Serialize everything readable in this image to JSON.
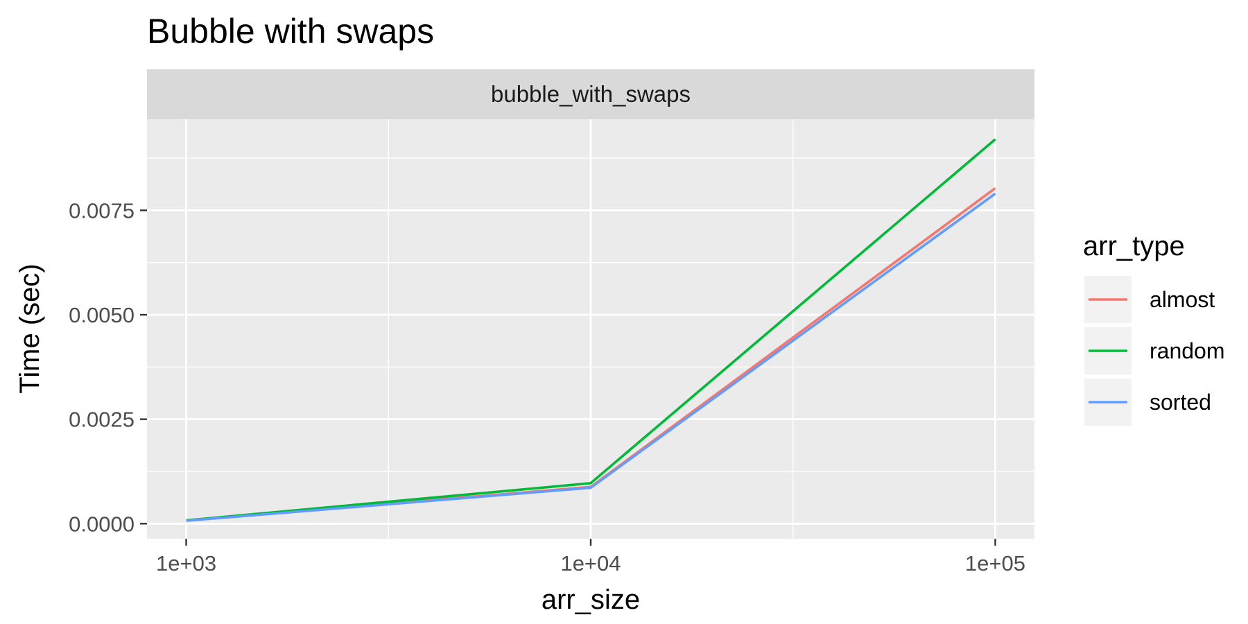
{
  "chart_data": {
    "type": "line",
    "title": "Bubble with swaps",
    "facet_label": "bubble_with_swaps",
    "xlabel": "arr_size",
    "ylabel": "Time (sec)",
    "x_scale": "log10",
    "x": [
      1000,
      10000,
      100000
    ],
    "x_ticks": [
      1000,
      10000,
      100000
    ],
    "x_tick_labels": [
      "1e+03",
      "1e+04",
      "1e+05"
    ],
    "xlim": [
      800,
      125000
    ],
    "y_ticks": [
      0,
      0.0025,
      0.005,
      0.0075
    ],
    "y_tick_labels": [
      "0.0000",
      "0.0025",
      "0.0050",
      "0.0075"
    ],
    "ylim": [
      -0.00036,
      0.00968
    ],
    "grid": true,
    "legend_title": "arr_type",
    "legend_position": "right",
    "series": [
      {
        "name": "almost",
        "color": "#F8766D",
        "values": [
          8e-05,
          0.00088,
          0.00803
        ]
      },
      {
        "name": "random",
        "color": "#00BA38",
        "values": [
          8e-05,
          0.00097,
          0.0092
        ]
      },
      {
        "name": "sorted",
        "color": "#619CFF",
        "values": [
          7e-05,
          0.00086,
          0.0079
        ]
      }
    ]
  }
}
